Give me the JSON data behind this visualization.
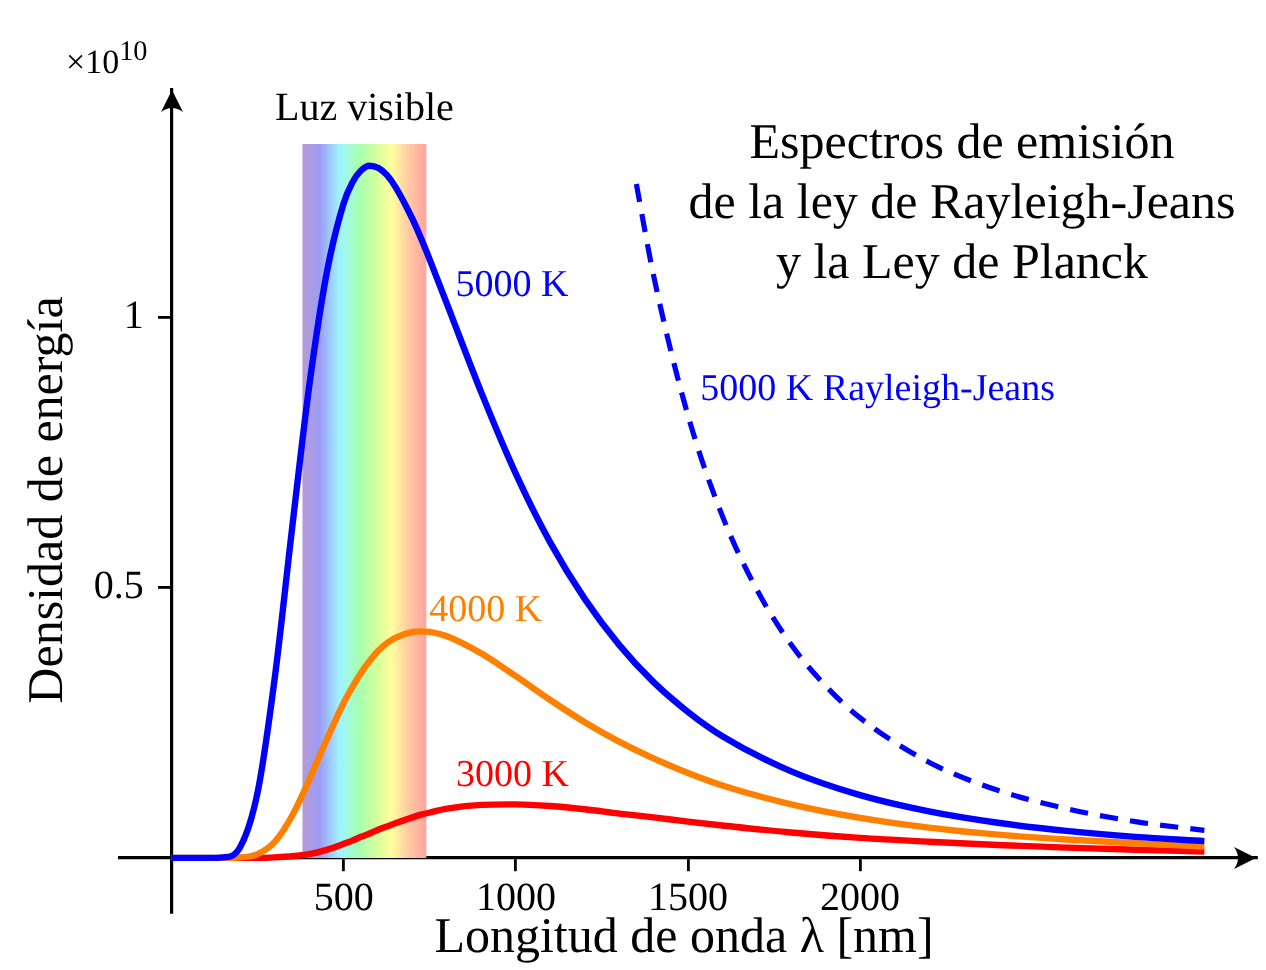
{
  "chart_data": {
    "type": "line",
    "title": "Espectros de emisión\nde la ley de Rayleigh-Jeans\ny la Ley de Planck",
    "xlabel": "Longitud de onda λ [nm]",
    "ylabel": "Densidad de energía",
    "annotations": [
      "×10$^{10}$"
    ],
    "x": [
      0,
      100,
      150,
      200,
      250,
      300,
      350,
      400,
      450,
      500,
      525,
      550,
      575,
      600,
      625,
      650,
      700,
      725,
      750,
      800,
      900,
      1000,
      1100,
      1200,
      1300,
      1400,
      1500,
      1600,
      1800,
      2000,
      2200,
      2400,
      2600,
      2800,
      3000
    ],
    "series": [
      {
        "name": "5000 K",
        "color": "#0000ff",
        "values": [
          0,
          0,
          0.001,
          0.021,
          0.122,
          0.335,
          0.61,
          0.874,
          1.08,
          1.211,
          1.249,
          1.271,
          1.28,
          1.276,
          1.263,
          1.241,
          1.181,
          1.145,
          1.106,
          1.024,
          0.86,
          0.71,
          0.583,
          0.479,
          0.394,
          0.325,
          0.27,
          0.225,
          0.16,
          0.116,
          0.086,
          0.065,
          0.05,
          0.039,
          0.031
        ]
      },
      {
        "name": "4000 K",
        "color": "#ff8000",
        "values": [
          0,
          0,
          0,
          0.001,
          0.007,
          0.03,
          0.078,
          0.145,
          0.218,
          0.287,
          0.316,
          0.342,
          0.364,
          0.383,
          0.397,
          0.407,
          0.418,
          0.419,
          0.418,
          0.41,
          0.378,
          0.336,
          0.292,
          0.251,
          0.215,
          0.184,
          0.157,
          0.134,
          0.099,
          0.074,
          0.056,
          0.043,
          0.034,
          0.027,
          0.021
        ]
      },
      {
        "name": "3000 K",
        "color": "#ff0000",
        "values": [
          null,
          null,
          0,
          0,
          0,
          0.001,
          0.003,
          0.007,
          0.015,
          0.026,
          0.032,
          0.039,
          0.045,
          0.052,
          0.058,
          0.064,
          0.075,
          0.08,
          0.084,
          0.091,
          0.098,
          0.099,
          0.096,
          0.09,
          0.082,
          0.075,
          0.067,
          0.06,
          0.047,
          0.037,
          0.03,
          0.024,
          0.019,
          0.015,
          0.012
        ]
      },
      {
        "name": "5000 K Rayleigh-Jeans",
        "color": "#0000ff",
        "line_style": "dashed",
        "x": [
          1350,
          1400,
          1500,
          1600,
          1700,
          1800,
          1900,
          2000,
          2200,
          2400,
          2600,
          2800,
          3000
        ],
        "values": [
          1.246,
          1.077,
          0.818,
          0.632,
          0.496,
          0.394,
          0.318,
          0.259,
          0.177,
          0.125,
          0.091,
          0.067,
          0.051
        ]
      }
    ],
    "bands": [
      {
        "axis": "x",
        "from": 380,
        "to": 740,
        "label": "Luz visible"
      }
    ],
    "xlim": [
      -150,
      3150
    ],
    "xticks": [
      500,
      1000,
      1500,
      2000
    ],
    "ylim": [
      -0.1,
      1.42
    ],
    "yticks": [
      0.5,
      1
    ]
  }
}
